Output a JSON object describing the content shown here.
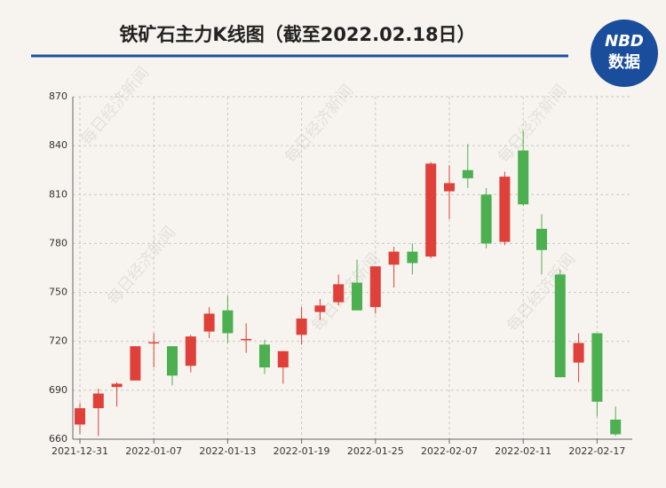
{
  "chart_data": {
    "type": "candlestick",
    "title": "铁矿石主力K线图（截至2022.02.18日）",
    "logo": {
      "top": "NBD",
      "bottom": "数据"
    },
    "watermark": "每日经济新闻",
    "categories": [
      "2021-12-31",
      null,
      null,
      null,
      "2022-01-07",
      null,
      null,
      null,
      "2022-01-13",
      null,
      null,
      null,
      "2022-01-19",
      null,
      null,
      null,
      "2022-01-25",
      null,
      null,
      null,
      "2022-02-07",
      null,
      null,
      null,
      "2022-02-11",
      null,
      null,
      null,
      "2022-02-17",
      null
    ],
    "series": [
      {
        "open": [
          669,
          679,
          692,
          696,
          719,
          717,
          705,
          726,
          739,
          721,
          718,
          704,
          724,
          738,
          744,
          756,
          741,
          767,
          775,
          772,
          812,
          825,
          810,
          781,
          837,
          789,
          761,
          707,
          725,
          672
        ],
        "close": [
          679,
          688,
          694,
          717,
          719.5,
          699,
          723,
          737,
          725,
          721.5,
          704,
          714,
          734,
          742,
          755,
          739,
          766,
          775,
          768,
          829,
          817,
          820,
          780,
          821,
          804,
          776,
          698,
          719,
          683,
          663
        ],
        "high": [
          682,
          691,
          695,
          717,
          725,
          717,
          724,
          741,
          748,
          731,
          721,
          714,
          741,
          746,
          761,
          770,
          766,
          778,
          780,
          830,
          828,
          841,
          814,
          824,
          849,
          798,
          764,
          725,
          725,
          680
        ],
        "low": [
          663,
          662,
          680,
          696,
          704,
          693,
          701,
          722,
          719,
          713,
          700,
          694,
          718,
          733,
          742,
          739,
          737,
          753,
          761,
          771,
          795,
          814,
          777,
          779,
          803,
          761,
          698,
          695,
          674,
          662
        ]
      }
    ],
    "up_color": "#e0403a",
    "down_color": "#4caf50",
    "ylim": [
      660,
      870
    ],
    "yticks": [
      660,
      690,
      720,
      750,
      780,
      810,
      840,
      870
    ],
    "grid": true
  }
}
